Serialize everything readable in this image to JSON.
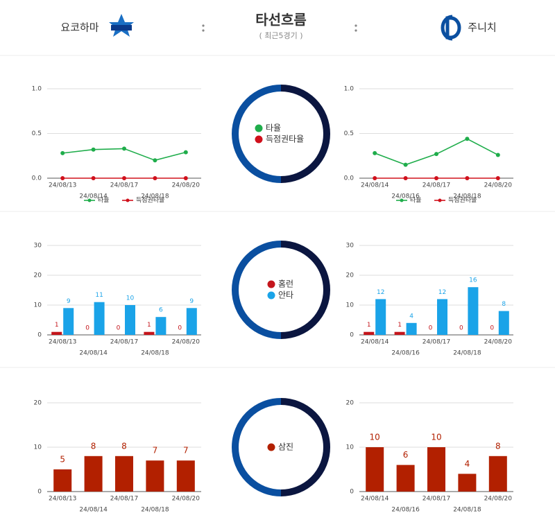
{
  "header": {
    "home_team": "요코하마",
    "title": "타선흐름",
    "subtitle": "( 최근5경기 )",
    "away_team": "주니치"
  },
  "chart_data": [
    {
      "type": "line",
      "categories": [
        "24/08/13",
        "24/08/14",
        "24/08/17",
        "24/08/18",
        "24/08/20"
      ],
      "series": [
        {
          "name": "타율",
          "color": "#1fad4b",
          "values": [
            0.28,
            0.32,
            0.33,
            0.2,
            0.29
          ]
        },
        {
          "name": "득점권타율",
          "color": "#d0101b",
          "values": [
            0,
            0,
            0,
            0,
            0
          ]
        }
      ],
      "ylim": [
        0,
        1
      ],
      "yticks": [
        {
          "value": 0,
          "label": "0.0"
        },
        {
          "value": 0.5,
          "label": "0.5"
        },
        {
          "value": 1,
          "label": "1.0"
        }
      ],
      "grid": true
    },
    {
      "type": "line",
      "categories": [
        "24/08/14",
        "24/08/16",
        "24/08/17",
        "24/08/18",
        "24/08/20"
      ],
      "series": [
        {
          "name": "타율",
          "color": "#1fad4b",
          "values": [
            0.28,
            0.15,
            0.27,
            0.44,
            0.26
          ]
        },
        {
          "name": "득점권타율",
          "color": "#d0101b",
          "values": [
            0,
            0,
            0,
            0,
            0
          ]
        }
      ],
      "ylim": [
        0,
        1
      ],
      "yticks": [
        {
          "value": 0,
          "label": "0.0"
        },
        {
          "value": 0.5,
          "label": "0.5"
        },
        {
          "value": 1,
          "label": "1.0"
        }
      ],
      "grid": true
    },
    {
      "type": "bar",
      "categories": [
        "24/08/13",
        "24/08/14",
        "24/08/17",
        "24/08/18",
        "24/08/20"
      ],
      "series": [
        {
          "name": "홈런",
          "color": "#c4161c",
          "values": [
            1,
            0,
            0,
            1,
            0
          ]
        },
        {
          "name": "안타",
          "color": "#1aa3e8",
          "values": [
            9,
            11,
            10,
            6,
            9
          ]
        }
      ],
      "ylim": [
        0,
        30
      ],
      "yticks": [
        0,
        10,
        20,
        30
      ],
      "grid": true
    },
    {
      "type": "bar",
      "categories": [
        "24/08/14",
        "24/08/16",
        "24/08/17",
        "24/08/18",
        "24/08/20"
      ],
      "series": [
        {
          "name": "홈런",
          "color": "#c4161c",
          "values": [
            1,
            1,
            0,
            0,
            0
          ]
        },
        {
          "name": "안타",
          "color": "#1aa3e8",
          "values": [
            12,
            4,
            12,
            16,
            8
          ]
        }
      ],
      "ylim": [
        0,
        30
      ],
      "yticks": [
        0,
        10,
        20,
        30
      ],
      "grid": true
    },
    {
      "type": "bar",
      "categories": [
        "24/08/13",
        "24/08/14",
        "24/08/17",
        "24/08/18",
        "24/08/20"
      ],
      "series": [
        {
          "name": "삼진",
          "color": "#b22000",
          "values": [
            5,
            8,
            8,
            7,
            7
          ]
        }
      ],
      "ylim": [
        0,
        20
      ],
      "yticks": [
        0,
        10,
        20
      ],
      "grid": true
    },
    {
      "type": "bar",
      "categories": [
        "24/08/14",
        "24/08/16",
        "24/08/17",
        "24/08/18",
        "24/08/20"
      ],
      "series": [
        {
          "name": "삼진",
          "color": "#b22000",
          "values": [
            10,
            6,
            10,
            4,
            8
          ]
        }
      ],
      "ylim": [
        0,
        20
      ],
      "yticks": [
        0,
        10,
        20
      ],
      "grid": true
    }
  ]
}
